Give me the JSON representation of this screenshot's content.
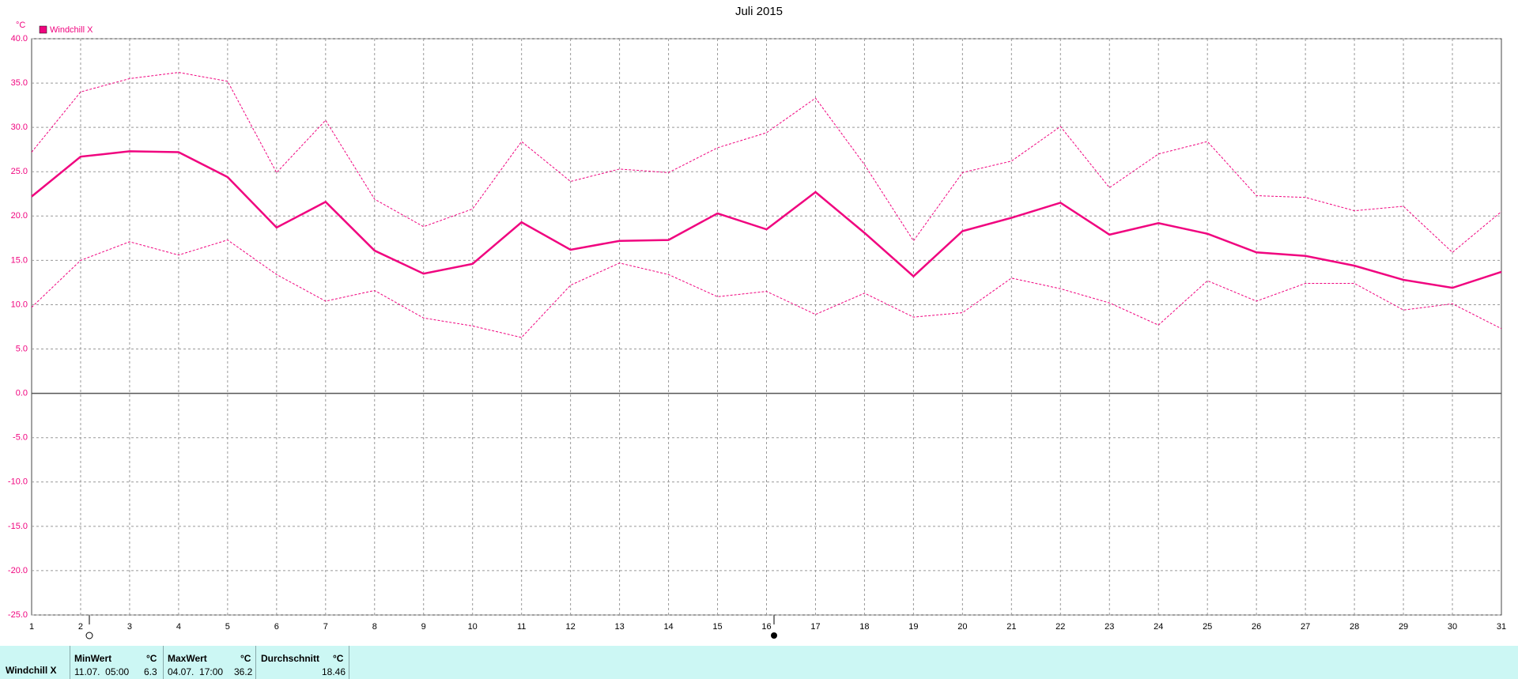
{
  "chart_data": {
    "type": "line",
    "title": "Juli 2015",
    "y_label": "°C",
    "categories": [
      1,
      2,
      3,
      4,
      5,
      6,
      7,
      8,
      9,
      10,
      11,
      12,
      13,
      14,
      15,
      16,
      17,
      18,
      19,
      20,
      21,
      22,
      23,
      24,
      25,
      26,
      27,
      28,
      29,
      30,
      31
    ],
    "series": [
      {
        "name": "Windchill X",
        "color": "#f0047f",
        "style": "solid",
        "values": [
          22.2,
          26.7,
          27.3,
          27.2,
          24.4,
          18.7,
          21.6,
          16.1,
          13.5,
          14.6,
          19.3,
          16.2,
          17.2,
          17.3,
          20.3,
          18.5,
          22.7,
          18.1,
          13.2,
          18.3,
          19.8,
          21.5,
          17.9,
          19.2,
          18.0,
          15.9,
          15.5,
          14.4,
          12.8,
          11.9,
          13.7
        ]
      },
      {
        "color": "#f0047f",
        "style": "dashed",
        "values": [
          27.2,
          34.0,
          35.5,
          36.2,
          35.2,
          24.9,
          30.8,
          21.9,
          18.8,
          20.8,
          28.4,
          23.9,
          25.3,
          24.9,
          27.7,
          29.4,
          33.3,
          25.8,
          17.2,
          24.9,
          26.2,
          30.1,
          23.2,
          27.0,
          28.4,
          22.3,
          22.1,
          20.6,
          21.1,
          15.9,
          20.5
        ]
      },
      {
        "color": "#f0047f",
        "style": "dashed",
        "values": [
          9.7,
          15.0,
          17.1,
          15.6,
          17.3,
          13.4,
          10.4,
          11.6,
          8.5,
          7.6,
          6.3,
          12.2,
          14.7,
          13.4,
          10.9,
          11.5,
          8.9,
          11.3,
          8.6,
          9.1,
          13.0,
          11.8,
          10.2,
          7.7,
          12.7,
          10.4,
          12.4,
          12.4,
          9.4,
          10.1,
          7.3
        ]
      }
    ],
    "ylim": [
      -25,
      40
    ],
    "yticks": [
      {
        "value": -25,
        "label": "-25.0"
      },
      {
        "value": -20,
        "label": "-20.0"
      },
      {
        "value": -15,
        "label": "-15.0"
      },
      {
        "value": -10,
        "label": "-10.0"
      },
      {
        "value": -5,
        "label": "-5.0"
      },
      {
        "value": 0,
        "label": "0.0"
      },
      {
        "value": 5,
        "label": "5.0"
      },
      {
        "value": 10,
        "label": "10.0"
      },
      {
        "value": 15,
        "label": "15.0"
      },
      {
        "value": 20,
        "label": "20.0"
      },
      {
        "value": 25,
        "label": "25.0"
      },
      {
        "value": 30,
        "label": "30.0"
      },
      {
        "value": 35,
        "label": "35.0"
      },
      {
        "value": 40,
        "label": "40.0"
      }
    ],
    "grid": true,
    "legend": "upper left"
  },
  "summary": {
    "row_label": "Windchill X",
    "min": {
      "title": "MinWert",
      "unit": "°C",
      "time": "11.07.  05:00",
      "value": 6.3
    },
    "max": {
      "title": "MaxWert",
      "unit": "°C",
      "time": "04.07.  17:00",
      "value": 36.2
    },
    "avg": {
      "title": "Durchschnitt",
      "unit": "°C",
      "value": 18.46
    }
  }
}
